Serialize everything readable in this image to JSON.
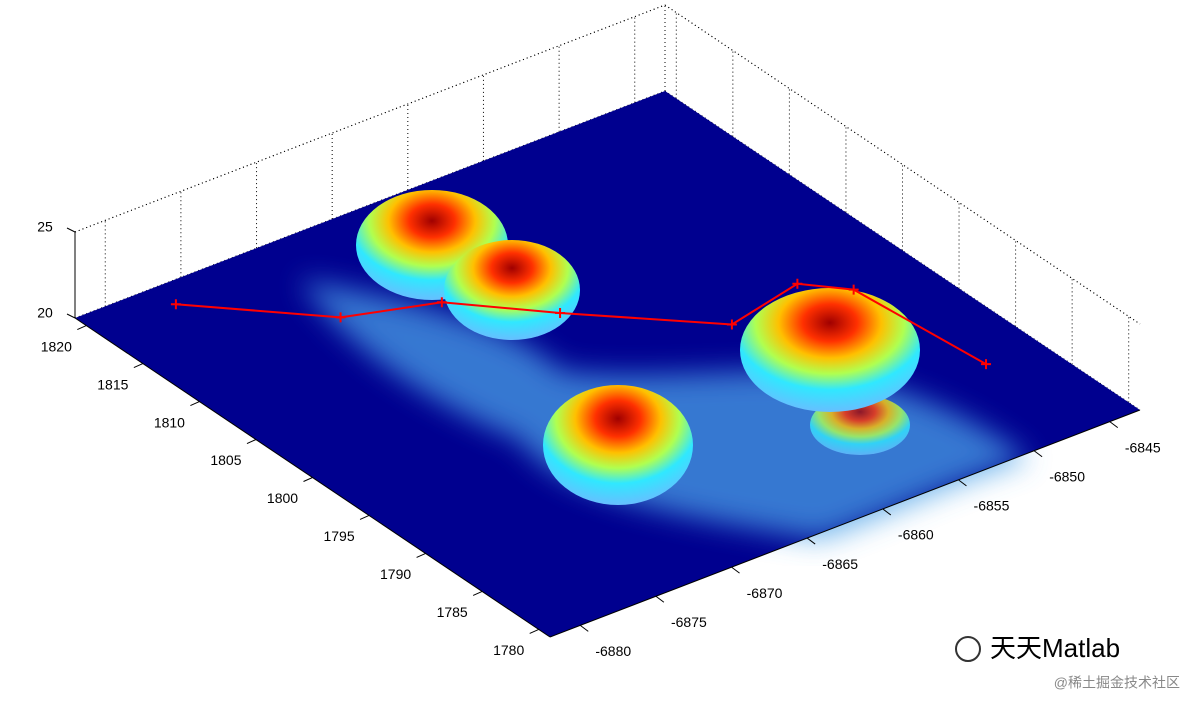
{
  "chart_data": {
    "type": "surface3d",
    "xlim": [
      -6882,
      -6843
    ],
    "xticks": [
      -6880,
      -6875,
      -6870,
      -6865,
      -6860,
      -6855,
      -6850,
      -6845
    ],
    "ylim": [
      1779,
      1821
    ],
    "yticks": [
      1780,
      1785,
      1790,
      1795,
      1800,
      1805,
      1810,
      1815,
      1820
    ],
    "zlim": [
      20,
      25
    ],
    "zticks": [
      20,
      25
    ],
    "grid": true,
    "series": [
      {
        "color": "#ff0000",
        "x": [
          -6876.9,
          -6870.8,
          -6865.6,
          -6861.3,
          -6854.8,
          -6849.5,
          -6847.5,
          -6846.6
        ],
        "y": [
          1818.9,
          1812.5,
          1810.5,
          1805.8,
          1799.3,
          1800.6,
          1798.3,
          1787.8
        ]
      }
    ]
  },
  "watermark": {
    "brand": "天天Matlab",
    "source": "@稀土掘金技术社区"
  }
}
